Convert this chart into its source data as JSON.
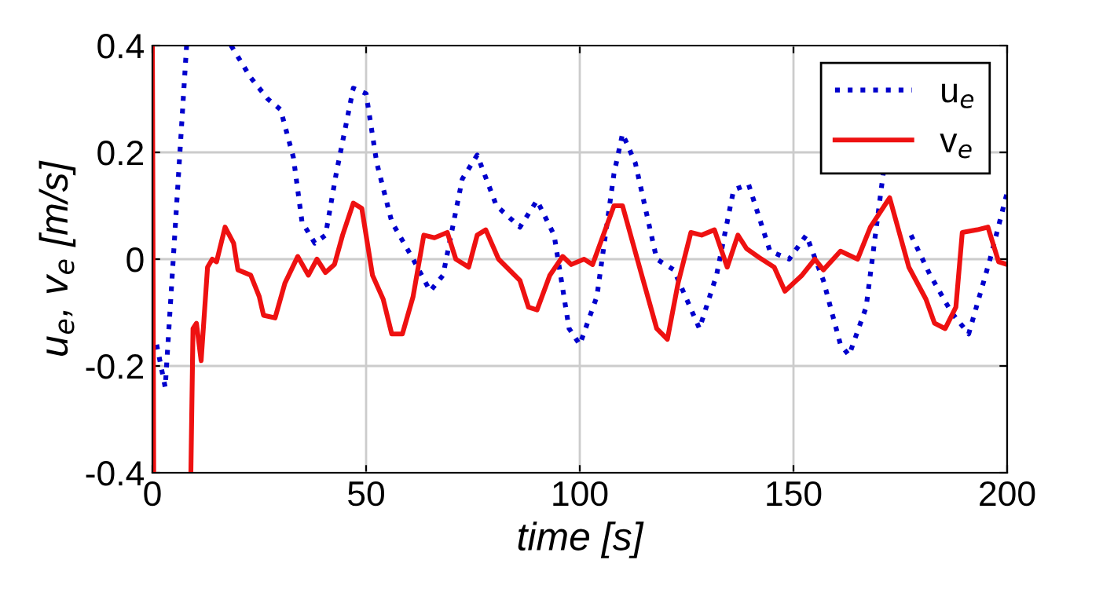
{
  "chart_data": {
    "type": "line",
    "xlabel": "time [s]",
    "ylabel": "u$_{e}$, v$_{e}$ [m/s]",
    "xlim": [
      0,
      200
    ],
    "ylim": [
      -0.4,
      0.4
    ],
    "xticks": [
      0,
      50,
      100,
      150,
      200
    ],
    "yticks": [
      -0.4,
      -0.2,
      0,
      0.2,
      0.4
    ],
    "grid": true,
    "legend": "top right",
    "series": [
      {
        "name": "u$_{e}$",
        "color": "#0000cc",
        "line_style": "dotted",
        "x": [
          1,
          3,
          8,
          13,
          18.4,
          23,
          27,
          30,
          33,
          35,
          38,
          40.5,
          43,
          47,
          50,
          52.5,
          56,
          61,
          65,
          68,
          72.5,
          76,
          80.5,
          86,
          90,
          94,
          97.5,
          100,
          104,
          108,
          110,
          113,
          118,
          122,
          128,
          132,
          136,
          139.5,
          144.5,
          149,
          153,
          157,
          161,
          163,
          167,
          171,
          173,
          177.5,
          182,
          187,
          191,
          196,
          200
        ],
        "values": [
          -0.16,
          -0.24,
          0.4,
          null,
          0.4,
          0.34,
          0.3,
          0.28,
          0.19,
          0.07,
          0.03,
          0.045,
          0.16,
          0.32,
          0.31,
          0.18,
          0.07,
          0.0,
          -0.06,
          -0.03,
          0.15,
          0.195,
          0.1,
          0.06,
          0.11,
          0.045,
          -0.13,
          -0.16,
          -0.07,
          0.16,
          0.235,
          0.18,
          0.0,
          -0.02,
          -0.13,
          -0.03,
          0.13,
          0.14,
          0.015,
          0.0,
          0.045,
          -0.04,
          -0.16,
          -0.18,
          -0.09,
          0.16,
          null,
          0.045,
          -0.03,
          -0.1,
          -0.14,
          0.0,
          0.125
        ]
      },
      {
        "name": "v$_{e}$",
        "color": "#ee1111",
        "line_style": "solid",
        "x": [
          0,
          0.3,
          5,
          9,
          9.5,
          10.3,
          11.4,
          12.9,
          14,
          15,
          17,
          19,
          20,
          23,
          25,
          26,
          28.7,
          31,
          34,
          36.5,
          38.5,
          40.5,
          42.6,
          44.5,
          47,
          49,
          51.5,
          54,
          56,
          58.5,
          61,
          63.5,
          66,
          69,
          71,
          74,
          76,
          78,
          81,
          86,
          88,
          90,
          93,
          96,
          98,
          101,
          103,
          108,
          110,
          114.5,
          118,
          120.5,
          123,
          126,
          128.5,
          131.5,
          134.5,
          137,
          139,
          142,
          145.5,
          148,
          152,
          155,
          157,
          161,
          165,
          168,
          172.5,
          177,
          181,
          183,
          185.5,
          188,
          189.5,
          193,
          195.5,
          198,
          200
        ],
        "values": [
          0.4,
          -0.4,
          null,
          -0.4,
          -0.13,
          -0.12,
          -0.19,
          -0.015,
          0.0,
          -0.005,
          0.06,
          0.03,
          -0.02,
          -0.03,
          -0.07,
          -0.105,
          -0.11,
          -0.045,
          0.005,
          -0.03,
          0.0,
          -0.025,
          -0.01,
          0.045,
          0.105,
          0.095,
          -0.03,
          -0.075,
          -0.14,
          -0.14,
          -0.07,
          0.045,
          0.04,
          0.05,
          0.0,
          -0.015,
          0.045,
          0.055,
          0.0,
          -0.04,
          -0.09,
          -0.095,
          -0.03,
          0.005,
          -0.01,
          0.0,
          -0.01,
          0.1,
          0.1,
          -0.03,
          -0.13,
          -0.15,
          -0.045,
          0.05,
          0.045,
          0.055,
          -0.015,
          0.045,
          0.02,
          0.003,
          -0.015,
          -0.06,
          -0.03,
          0.0,
          -0.02,
          0.015,
          0.0,
          0.06,
          0.115,
          -0.015,
          -0.075,
          -0.12,
          -0.13,
          -0.09,
          0.05,
          0.055,
          0.06,
          -0.005,
          -0.01
        ]
      }
    ]
  }
}
